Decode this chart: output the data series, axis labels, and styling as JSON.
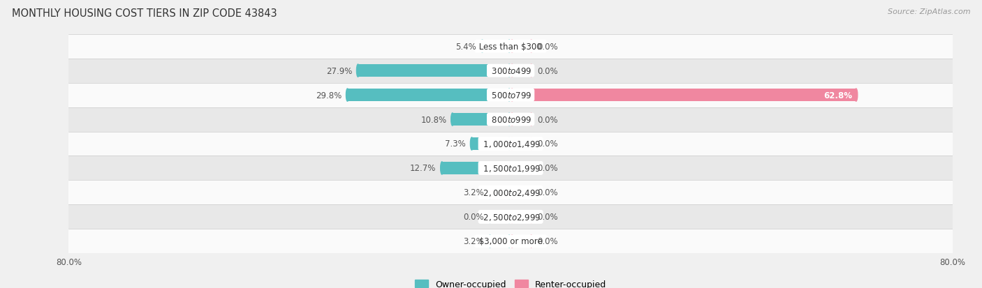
{
  "title": "MONTHLY HOUSING COST TIERS IN ZIP CODE 43843",
  "source": "Source: ZipAtlas.com",
  "categories": [
    "Less than $300",
    "$300 to $499",
    "$500 to $799",
    "$800 to $999",
    "$1,000 to $1,499",
    "$1,500 to $1,999",
    "$2,000 to $2,499",
    "$2,500 to $2,999",
    "$3,000 or more"
  ],
  "owner_values": [
    5.4,
    27.9,
    29.8,
    10.8,
    7.3,
    12.7,
    3.2,
    0.0,
    3.2
  ],
  "renter_values": [
    0.0,
    0.0,
    62.8,
    0.0,
    0.0,
    0.0,
    0.0,
    0.0,
    0.0
  ],
  "owner_color": "#56bec0",
  "renter_color": "#f087a0",
  "axis_limit": 80.0,
  "min_stub": 4.0,
  "bg_color": "#f0f0f0",
  "bar_bg_light": "#fafafa",
  "bar_bg_dark": "#e8e8e8",
  "label_fontsize": 8.5,
  "title_fontsize": 10.5,
  "source_fontsize": 8.0,
  "category_fontsize": 8.5,
  "legend_fontsize": 9.0,
  "axis_tick_fontsize": 8.5,
  "bar_height": 0.52,
  "renter_62_label_color": "#ffffff"
}
